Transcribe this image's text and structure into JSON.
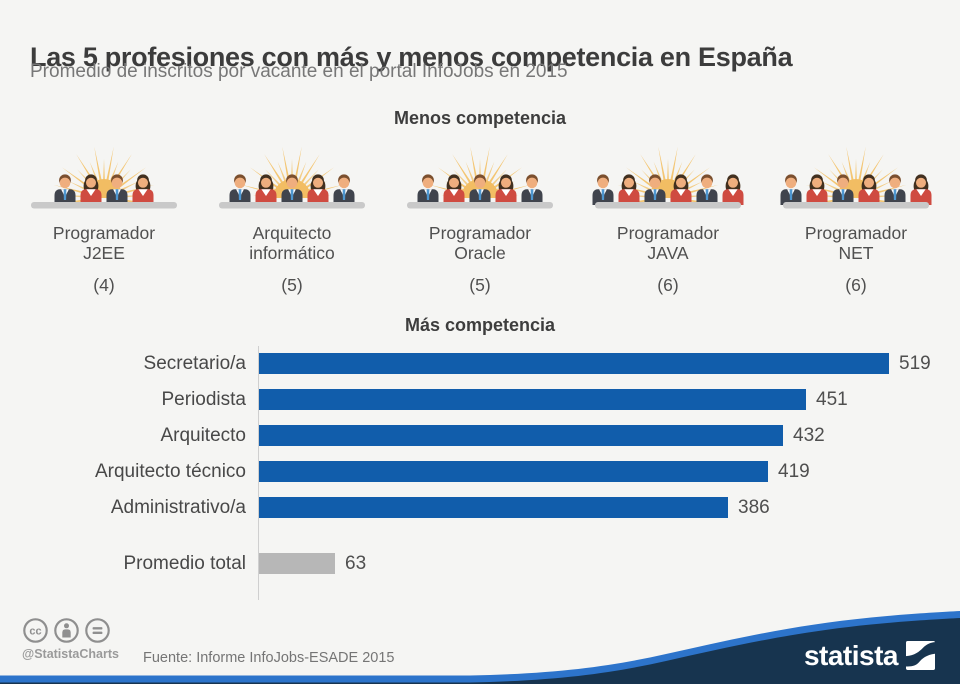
{
  "title": "Las 5 profesiones con más y menos competencia en España",
  "subtitle": "Promedio de inscritos por vacante en el portal InfoJobs en 2015",
  "chart_data": [
    {
      "type": "pictogram",
      "title": "Menos competencia",
      "unit": "inscritos por vacante",
      "categories": [
        "Programador J2EE",
        "Arquitecto informático",
        "Programador Oracle",
        "Programador JAVA",
        "Programador NET"
      ],
      "label_lines": [
        [
          "Programador",
          "J2EE"
        ],
        [
          "Arquitecto",
          "informático"
        ],
        [
          "Programador",
          "Oracle"
        ],
        [
          "Programador",
          "JAVA"
        ],
        [
          "Programador",
          "NET"
        ]
      ],
      "values": [
        4,
        5,
        5,
        6,
        6
      ],
      "value_labels": [
        "(4)",
        "(5)",
        "(5)",
        "(6)",
        "(6)"
      ],
      "icon": "people-panel-sunburst"
    },
    {
      "type": "bar",
      "orientation": "horizontal",
      "title": "Más competencia",
      "unit": "inscritos por vacante",
      "categories": [
        "Secretario/a",
        "Periodista",
        "Arquitecto",
        "Arquitecto técnico",
        "Administrativo/a"
      ],
      "values": [
        519,
        451,
        432,
        419,
        386
      ],
      "data_labels": [
        "519",
        "451",
        "432",
        "419",
        "386"
      ],
      "average": {
        "label": "Promedio total",
        "value": 63,
        "data_label": "63"
      },
      "xlim": [
        0,
        560
      ],
      "grid": false,
      "legend": "none",
      "bar_color": "#115dab",
      "average_color": "#b7b7b7"
    }
  ],
  "sections": {
    "less_header": "Menos competencia",
    "more_header": "Más competencia"
  },
  "footer": {
    "handle": "@StatistaCharts",
    "source": "Fuente: Informe InfoJobs-ESADE 2015",
    "brand": "statista",
    "license_icons": [
      "cc",
      "attribution",
      "no-derivatives"
    ]
  },
  "colors": {
    "background": "#f5f5f3",
    "bar_blue": "#115dab",
    "average_gray": "#b7b7b7",
    "axis": "#cfcfcf",
    "title_text": "#3c3c3c",
    "subtitle_text": "#777777",
    "header_text": "#3d3d3d",
    "label_text": "#505050",
    "sun_rays": "#f3c36c",
    "sun_disk": "#f2bd63",
    "table": "#c9c9c9",
    "skin": "#efae7e",
    "hair_man": "#7b4f2e",
    "hair_woman": "#42301f",
    "man_suit": "#40444d",
    "woman_top": "#cf4b41",
    "tie": "#4e97d1",
    "footer_navy": "#17344f",
    "footer_stripe": "#2d74cb",
    "cc_gray": "#8f8f8f"
  }
}
